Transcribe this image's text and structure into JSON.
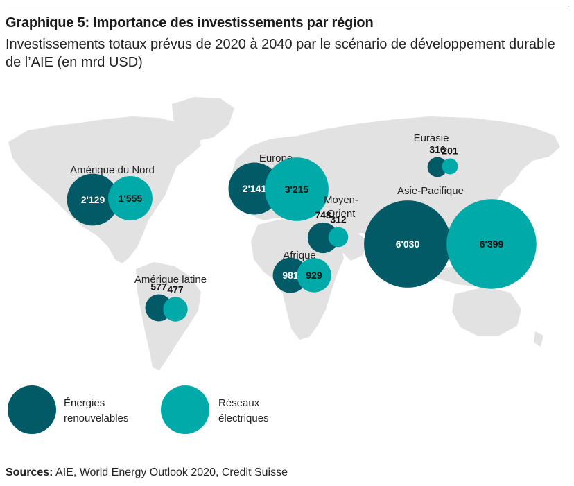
{
  "title": "Graphique 5: Importance des investissements par région",
  "subtitle": "Investissements totaux prévus de 2020 à 2040 par le scénario de développement durable de l’AIE (en mrd USD)",
  "source": {
    "label": "Sources:",
    "text": " AIE, World Energy Outlook 2020, Credit Suisse"
  },
  "colors": {
    "renewables": "#025a66",
    "grids": "#00aaa8",
    "map": "#e2e2e2"
  },
  "chart_data": {
    "type": "bubble-map",
    "title": "Graphique 5: Importance des investissements par région",
    "subtitle": "Investissements totaux prévus de 2020 à 2040 par le scénario de développement durable de l’AIE (en mrd USD)",
    "unit": "mrd USD",
    "series": [
      {
        "name": "Énergies renouvelables",
        "color": "#025a66"
      },
      {
        "name": "Réseaux électriques",
        "color": "#00aaa8"
      }
    ],
    "legend": [
      {
        "label": "Énergies renouvelables",
        "lines": [
          "Énergies",
          "renouvelables"
        ]
      },
      {
        "label": "Réseaux électriques",
        "lines": [
          "Réseaux",
          "électriques"
        ]
      }
    ],
    "regions": [
      {
        "name": "Amérique du Nord",
        "lines": [
          "Amérique du Nord"
        ],
        "renewables": 2129,
        "grids": 1555,
        "renewables_label": "2'129",
        "grids_label": "1'555"
      },
      {
        "name": "Amérique latine",
        "lines": [
          "Amérique latine"
        ],
        "renewables": 577,
        "grids": 477,
        "renewables_label": "577",
        "grids_label": "477"
      },
      {
        "name": "Europe",
        "lines": [
          "Europe"
        ],
        "renewables": 2141,
        "grids": 3215,
        "renewables_label": "2'141",
        "grids_label": "3'215"
      },
      {
        "name": "Eurasie",
        "lines": [
          "Eurasie"
        ],
        "renewables": 316,
        "grids": 201,
        "renewables_label": "316",
        "grids_label": "201"
      },
      {
        "name": "Moyen-Orient",
        "lines": [
          "Moyen-",
          "Orient"
        ],
        "renewables": 748,
        "grids": 312,
        "renewables_label": "748",
        "grids_label": "312"
      },
      {
        "name": "Afrique",
        "lines": [
          "Afrique"
        ],
        "renewables": 981,
        "grids": 929,
        "renewables_label": "981",
        "grids_label": "929"
      },
      {
        "name": "Asie-Pacifique",
        "lines": [
          "Asie-Pacifique"
        ],
        "renewables": 6030,
        "grids": 6399,
        "renewables_label": "6'030",
        "grids_label": "6'399"
      }
    ]
  }
}
